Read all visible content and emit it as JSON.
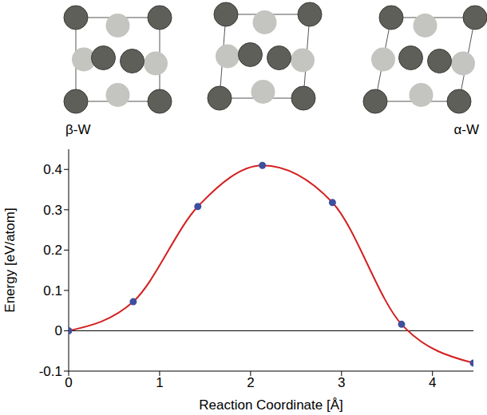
{
  "chart_data": {
    "type": "line",
    "x_label": "Reaction Coordinate [Å]",
    "y_label": "Energy [eV/atom]",
    "annotations": [
      "β-W",
      "α-W"
    ],
    "x": [
      0,
      0.71,
      1.42,
      2.13,
      2.9,
      3.66,
      4.45
    ],
    "series": [
      {
        "name": "Energy",
        "color": "#d42020",
        "marker": "circle",
        "marker_color": "#3f4f9f",
        "values": [
          0,
          0.072,
          0.308,
          0.41,
          0.318,
          0.016,
          -0.08
        ]
      }
    ],
    "xlim": [
      0,
      4.45
    ],
    "xticks": [
      0,
      1,
      2,
      3,
      4
    ],
    "ylim": [
      -0.1,
      0.45
    ],
    "yticks": [
      -0.1,
      0,
      0.1,
      0.2,
      0.3,
      0.4
    ],
    "hline": 0,
    "grid": false
  }
}
